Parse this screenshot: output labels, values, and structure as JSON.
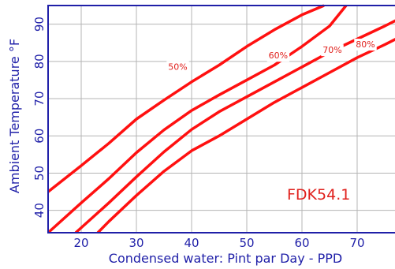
{
  "chart_data": {
    "type": "line",
    "xlabel": "Condensed water: Pint par Day - PPD",
    "ylabel": "Ambient Temperature °F",
    "xlim": [
      14,
      77
    ],
    "ylim": [
      34,
      95
    ],
    "x_ticks": [
      20,
      30,
      40,
      50,
      60,
      70
    ],
    "y_ticks": [
      40,
      50,
      60,
      70,
      80,
      90
    ],
    "x_ticklabels": [
      "20",
      "30",
      "40",
      "50",
      "60",
      "70"
    ],
    "y_ticklabels": [
      "40",
      "50",
      "60",
      "70",
      "80",
      "90"
    ],
    "grid": true,
    "annotation": "FDK54.1",
    "series": [
      {
        "name": "50%",
        "label_at": [
          37.5,
          78.5
        ],
        "x": [
          14,
          20,
          25,
          30,
          35,
          40,
          45,
          50,
          55,
          60,
          64
        ],
        "y": [
          45,
          52,
          58,
          64.5,
          69.6,
          74.5,
          79,
          84,
          88.5,
          92.5,
          95
        ]
      },
      {
        "name": "60%",
        "label_at": [
          55.7,
          81.5
        ],
        "x": [
          14,
          20,
          25,
          30,
          35,
          40,
          45,
          50,
          55,
          60,
          65,
          68
        ],
        "y": [
          34,
          42,
          48.5,
          55.5,
          61.6,
          66.8,
          71,
          75,
          79,
          84,
          89.5,
          95
        ]
      },
      {
        "name": "70%",
        "label_at": [
          65.5,
          83
        ],
        "x": [
          19,
          25,
          30,
          35,
          40,
          45,
          50,
          55,
          60,
          65,
          70,
          75,
          77
        ],
        "y": [
          34,
          42,
          49,
          55.7,
          61.7,
          66.5,
          70.5,
          74.5,
          78.5,
          82.5,
          86,
          89.5,
          91
        ]
      },
      {
        "name": "80%",
        "label_at": [
          71.5,
          84.5
        ],
        "x": [
          23,
          25,
          30,
          35,
          40,
          45,
          50,
          55,
          60,
          65,
          70,
          75,
          77
        ],
        "y": [
          34,
          37,
          44,
          50.5,
          56,
          60,
          64.5,
          69,
          73,
          77,
          81,
          84.5,
          86
        ]
      }
    ]
  }
}
